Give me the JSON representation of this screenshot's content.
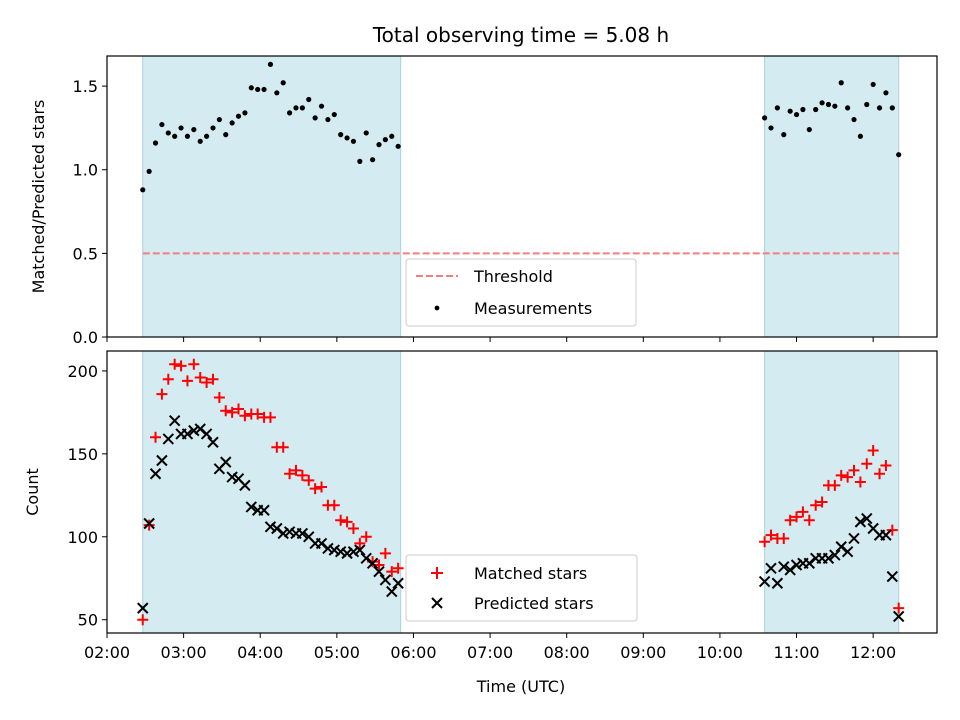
{
  "chart_data": {
    "type": "scatter",
    "title": "Total observing time = 5.08 h",
    "xlabel": "Time (UTC)",
    "x_ticks": [
      "02:00",
      "03:00",
      "04:00",
      "05:00",
      "06:00",
      "07:00",
      "08:00",
      "09:00",
      "10:00",
      "11:00",
      "12:00"
    ],
    "xlim": [
      "02:00",
      "12:50"
    ],
    "observing_windows": [
      {
        "start": "02:28",
        "end": "05:50"
      },
      {
        "start": "10:35",
        "end": "12:20"
      }
    ],
    "colors": {
      "window": "#d4ebf1",
      "threshold": "#f08080",
      "measurements": "#000000",
      "matched": "#ff0000",
      "predicted": "#000000"
    },
    "panels": [
      {
        "ylabel": "Matched/Predicted stars",
        "ylim": [
          0,
          1.68
        ],
        "y_ticks": [
          "0.0",
          "0.5",
          "1.0",
          "1.5"
        ],
        "legend": [
          "Threshold",
          "Measurements"
        ],
        "threshold": {
          "name": "Threshold",
          "y": 0.5,
          "style": "dashed"
        },
        "series": [
          {
            "name": "Measurements",
            "marker": "dot",
            "points": [
              [
                "02:28",
                0.88
              ],
              [
                "02:33",
                0.99
              ],
              [
                "02:38",
                1.16
              ],
              [
                "02:43",
                1.27
              ],
              [
                "02:48",
                1.22
              ],
              [
                "02:53",
                1.2
              ],
              [
                "02:58",
                1.25
              ],
              [
                "03:03",
                1.2
              ],
              [
                "03:08",
                1.24
              ],
              [
                "03:13",
                1.17
              ],
              [
                "03:18",
                1.2
              ],
              [
                "03:23",
                1.25
              ],
              [
                "03:28",
                1.3
              ],
              [
                "03:33",
                1.21
              ],
              [
                "03:38",
                1.28
              ],
              [
                "03:43",
                1.32
              ],
              [
                "03:48",
                1.34
              ],
              [
                "03:53",
                1.49
              ],
              [
                "03:58",
                1.48
              ],
              [
                "04:03",
                1.48
              ],
              [
                "04:08",
                1.63
              ],
              [
                "04:13",
                1.46
              ],
              [
                "04:18",
                1.52
              ],
              [
                "04:23",
                1.34
              ],
              [
                "04:28",
                1.37
              ],
              [
                "04:33",
                1.37
              ],
              [
                "04:38",
                1.42
              ],
              [
                "04:43",
                1.31
              ],
              [
                "04:48",
                1.38
              ],
              [
                "04:53",
                1.3
              ],
              [
                "04:58",
                1.33
              ],
              [
                "05:03",
                1.21
              ],
              [
                "05:08",
                1.19
              ],
              [
                "05:13",
                1.17
              ],
              [
                "05:18",
                1.05
              ],
              [
                "05:23",
                1.22
              ],
              [
                "05:28",
                1.06
              ],
              [
                "05:33",
                1.15
              ],
              [
                "05:38",
                1.18
              ],
              [
                "05:43",
                1.2
              ],
              [
                "05:48",
                1.14
              ],
              [
                "10:35",
                1.31
              ],
              [
                "10:40",
                1.25
              ],
              [
                "10:45",
                1.37
              ],
              [
                "10:50",
                1.21
              ],
              [
                "10:55",
                1.35
              ],
              [
                "11:00",
                1.33
              ],
              [
                "11:05",
                1.36
              ],
              [
                "11:10",
                1.24
              ],
              [
                "11:15",
                1.36
              ],
              [
                "11:20",
                1.4
              ],
              [
                "11:25",
                1.39
              ],
              [
                "11:30",
                1.38
              ],
              [
                "11:35",
                1.52
              ],
              [
                "11:40",
                1.37
              ],
              [
                "11:45",
                1.3
              ],
              [
                "11:50",
                1.2
              ],
              [
                "11:55",
                1.39
              ],
              [
                "12:00",
                1.51
              ],
              [
                "12:05",
                1.37
              ],
              [
                "12:10",
                1.46
              ],
              [
                "12:15",
                1.37
              ],
              [
                "12:20",
                1.09
              ]
            ]
          }
        ]
      },
      {
        "ylabel": "Count",
        "ylim": [
          42,
          212
        ],
        "y_ticks": [
          "50",
          "100",
          "150",
          "200"
        ],
        "legend": [
          "Matched stars",
          "Predicted stars"
        ],
        "series": [
          {
            "name": "Matched stars",
            "marker": "plus",
            "points": [
              [
                "02:28",
                50
              ],
              [
                "02:33",
                107
              ],
              [
                "02:38",
                160
              ],
              [
                "02:43",
                186
              ],
              [
                "02:48",
                195
              ],
              [
                "02:53",
                204
              ],
              [
                "02:58",
                203
              ],
              [
                "03:03",
                194
              ],
              [
                "03:08",
                204
              ],
              [
                "03:13",
                196
              ],
              [
                "03:18",
                193
              ],
              [
                "03:23",
                195
              ],
              [
                "03:28",
                184
              ],
              [
                "03:33",
                176
              ],
              [
                "03:38",
                175
              ],
              [
                "03:43",
                177
              ],
              [
                "03:48",
                173
              ],
              [
                "03:53",
                174
              ],
              [
                "03:58",
                174
              ],
              [
                "04:03",
                172
              ],
              [
                "04:08",
                172
              ],
              [
                "04:13",
                154
              ],
              [
                "04:18",
                154
              ],
              [
                "04:23",
                138
              ],
              [
                "04:28",
                140
              ],
              [
                "04:33",
                137
              ],
              [
                "04:38",
                134
              ],
              [
                "04:43",
                129
              ],
              [
                "04:48",
                130
              ],
              [
                "04:53",
                119
              ],
              [
                "04:58",
                119
              ],
              [
                "05:03",
                110
              ],
              [
                "05:08",
                109
              ],
              [
                "05:13",
                105
              ],
              [
                "05:18",
                96
              ],
              [
                "05:23",
                100
              ],
              [
                "05:28",
                85
              ],
              [
                "05:33",
                83
              ],
              [
                "05:38",
                90
              ],
              [
                "05:43",
                79
              ],
              [
                "05:48",
                81
              ],
              [
                "10:35",
                97
              ],
              [
                "10:40",
                101
              ],
              [
                "10:45",
                99
              ],
              [
                "10:50",
                99
              ],
              [
                "10:55",
                110
              ],
              [
                "11:00",
                112
              ],
              [
                "11:05",
                115
              ],
              [
                "11:10",
                110
              ],
              [
                "11:15",
                119
              ],
              [
                "11:20",
                121
              ],
              [
                "11:25",
                131
              ],
              [
                "11:30",
                131
              ],
              [
                "11:35",
                137
              ],
              [
                "11:40",
                136
              ],
              [
                "11:45",
                140
              ],
              [
                "11:50",
                133
              ],
              [
                "11:55",
                144
              ],
              [
                "12:00",
                152
              ],
              [
                "12:05",
                138
              ],
              [
                "12:10",
                143
              ],
              [
                "12:15",
                104
              ],
              [
                "12:20",
                57
              ]
            ]
          },
          {
            "name": "Predicted stars",
            "marker": "cross",
            "points": [
              [
                "02:28",
                57
              ],
              [
                "02:33",
                108
              ],
              [
                "02:38",
                138
              ],
              [
                "02:43",
                146
              ],
              [
                "02:48",
                159
              ],
              [
                "02:53",
                170
              ],
              [
                "02:58",
                162
              ],
              [
                "03:03",
                162
              ],
              [
                "03:08",
                164
              ],
              [
                "03:13",
                165
              ],
              [
                "03:18",
                162
              ],
              [
                "03:23",
                157
              ],
              [
                "03:28",
                141
              ],
              [
                "03:33",
                145
              ],
              [
                "03:38",
                136
              ],
              [
                "03:43",
                135
              ],
              [
                "03:48",
                131
              ],
              [
                "03:53",
                118
              ],
              [
                "03:58",
                116
              ],
              [
                "04:03",
                116
              ],
              [
                "04:08",
                106
              ],
              [
                "04:13",
                105
              ],
              [
                "04:18",
                102
              ],
              [
                "04:23",
                103
              ],
              [
                "04:28",
                102
              ],
              [
                "04:33",
                102
              ],
              [
                "04:38",
                100
              ],
              [
                "04:43",
                96
              ],
              [
                "04:48",
                96
              ],
              [
                "04:53",
                93
              ],
              [
                "04:58",
                92
              ],
              [
                "05:03",
                91
              ],
              [
                "05:08",
                90
              ],
              [
                "05:13",
                91
              ],
              [
                "05:18",
                92
              ],
              [
                "05:23",
                87
              ],
              [
                "05:28",
                84
              ],
              [
                "05:33",
                79
              ],
              [
                "05:38",
                74
              ],
              [
                "05:43",
                67
              ],
              [
                "05:48",
                72
              ],
              [
                "10:35",
                73
              ],
              [
                "10:40",
                81
              ],
              [
                "10:45",
                72
              ],
              [
                "10:50",
                82
              ],
              [
                "10:55",
                80
              ],
              [
                "11:00",
                83
              ],
              [
                "11:05",
                84
              ],
              [
                "11:10",
                84
              ],
              [
                "11:15",
                87
              ],
              [
                "11:20",
                87
              ],
              [
                "11:25",
                87
              ],
              [
                "11:30",
                89
              ],
              [
                "11:35",
                94
              ],
              [
                "11:40",
                91
              ],
              [
                "11:45",
                99
              ],
              [
                "11:50",
                109
              ],
              [
                "11:55",
                111
              ],
              [
                "12:00",
                105
              ],
              [
                "12:05",
                101
              ],
              [
                "12:10",
                101
              ],
              [
                "12:15",
                76
              ],
              [
                "12:20",
                52
              ]
            ]
          }
        ]
      }
    ]
  }
}
